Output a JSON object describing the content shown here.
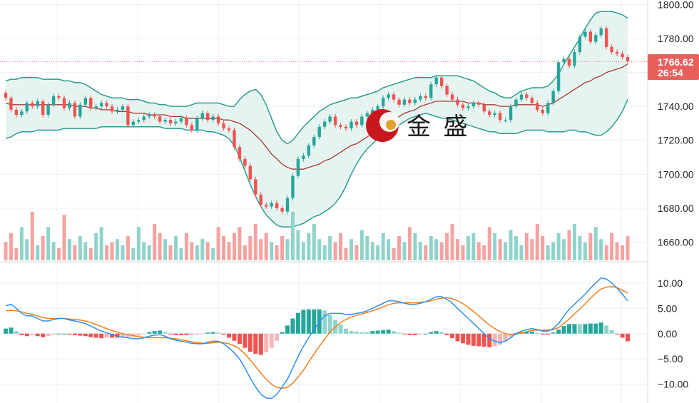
{
  "watermark": {
    "text": "金 盛"
  },
  "price_badge": {
    "price": "1766.62",
    "countdown": "26:54",
    "color": "#e8605c"
  },
  "colors": {
    "up": "#26a69a",
    "down": "#ef5350",
    "bb_band": "#2a9d8f",
    "bb_fill": "#e6f4f1",
    "bb_mid": "#a83a32",
    "macd_line": "#2f8fe8",
    "signal_line": "#f07f1c",
    "vol_up": "#8fd3cb",
    "vol_down": "#f4a3a0",
    "grid": "#eceff3"
  },
  "chart_data": [
    {
      "type": "candlestick",
      "name": "price",
      "y_ticks": [
        "1800.00",
        "1780.00",
        "1760.00",
        "1740.00",
        "1720.00",
        "1700.00",
        "1680.00",
        "1660.00"
      ],
      "ylim": [
        1656,
        1801
      ],
      "current_price": 1766.62,
      "close": [
        1745,
        1738,
        1735,
        1737,
        1742,
        1740,
        1743,
        1735,
        1741,
        1746,
        1745,
        1739,
        1742,
        1734,
        1741,
        1745,
        1739,
        1740,
        1742,
        1740,
        1737,
        1738,
        1740,
        1729,
        1731,
        1732,
        1734,
        1735,
        1734,
        1731,
        1732,
        1730,
        1731,
        1733,
        1729,
        1726,
        1733,
        1736,
        1732,
        1734,
        1730,
        1727,
        1726,
        1716,
        1709,
        1705,
        1697,
        1688,
        1682,
        1681,
        1683,
        1680,
        1678,
        1686,
        1699,
        1709,
        1711,
        1717,
        1722,
        1728,
        1731,
        1734,
        1729,
        1728,
        1727,
        1731,
        1729,
        1734,
        1736,
        1738,
        1740,
        1745,
        1747,
        1744,
        1741,
        1744,
        1742,
        1744,
        1746,
        1745,
        1753,
        1757,
        1752,
        1747,
        1744,
        1741,
        1739,
        1740,
        1742,
        1741,
        1737,
        1735,
        1736,
        1732,
        1732,
        1740,
        1744,
        1747,
        1745,
        1742,
        1738,
        1736,
        1742,
        1749,
        1766,
        1768,
        1764,
        1772,
        1781,
        1784,
        1778,
        1782,
        1786,
        1775,
        1772,
        1771,
        1769,
        1766.62
      ],
      "open": [
        1748,
        1745,
        1738,
        1735,
        1737,
        1742,
        1740,
        1743,
        1735,
        1741,
        1746,
        1745,
        1739,
        1742,
        1734,
        1741,
        1745,
        1739,
        1740,
        1742,
        1740,
        1737,
        1738,
        1740,
        1729,
        1731,
        1732,
        1734,
        1735,
        1734,
        1731,
        1732,
        1730,
        1731,
        1733,
        1729,
        1726,
        1733,
        1736,
        1732,
        1734,
        1730,
        1727,
        1726,
        1716,
        1709,
        1705,
        1697,
        1688,
        1682,
        1681,
        1683,
        1680,
        1678,
        1686,
        1699,
        1709,
        1711,
        1717,
        1722,
        1728,
        1731,
        1734,
        1729,
        1728,
        1727,
        1731,
        1729,
        1734,
        1736,
        1738,
        1740,
        1745,
        1747,
        1744,
        1741,
        1744,
        1742,
        1744,
        1746,
        1745,
        1753,
        1757,
        1752,
        1747,
        1744,
        1741,
        1739,
        1740,
        1742,
        1741,
        1737,
        1735,
        1736,
        1732,
        1732,
        1740,
        1744,
        1747,
        1745,
        1742,
        1738,
        1736,
        1742,
        1749,
        1766,
        1768,
        1764,
        1772,
        1781,
        1784,
        1778,
        1782,
        1786,
        1775,
        1772,
        1771,
        1769
      ],
      "bb_upper": [
        1755,
        1756,
        1756,
        1757,
        1757,
        1757,
        1757,
        1756,
        1756,
        1756,
        1756,
        1755,
        1755,
        1754,
        1754,
        1753,
        1751,
        1749,
        1747,
        1746,
        1745,
        1745,
        1745,
        1744,
        1744,
        1744,
        1743,
        1742,
        1742,
        1741,
        1741,
        1740,
        1740,
        1740,
        1740,
        1741,
        1742,
        1742,
        1742,
        1742,
        1742,
        1741,
        1740,
        1740,
        1744,
        1747,
        1749,
        1750,
        1747,
        1741,
        1733,
        1725,
        1720,
        1718,
        1720,
        1724,
        1728,
        1731,
        1734,
        1737,
        1739,
        1741,
        1742,
        1743,
        1744,
        1745,
        1745,
        1746,
        1747,
        1748,
        1749,
        1751,
        1752,
        1753,
        1754,
        1755,
        1756,
        1757,
        1757,
        1757,
        1757,
        1758,
        1758,
        1758,
        1758,
        1758,
        1757,
        1756,
        1755,
        1753,
        1751,
        1749,
        1748,
        1746,
        1745,
        1745,
        1747,
        1749,
        1750,
        1751,
        1751,
        1751,
        1752,
        1755,
        1759,
        1765,
        1770,
        1775,
        1780,
        1786,
        1791,
        1795,
        1796,
        1796,
        1796,
        1795,
        1794,
        1792
      ],
      "bb_mid": [
        1742,
        1741,
        1741,
        1741,
        1741,
        1741,
        1741,
        1741,
        1741,
        1741,
        1741,
        1741,
        1741,
        1740,
        1740,
        1740,
        1739,
        1739,
        1738,
        1738,
        1738,
        1737,
        1737,
        1737,
        1736,
        1736,
        1736,
        1735,
        1735,
        1735,
        1735,
        1734,
        1734,
        1734,
        1733,
        1733,
        1733,
        1733,
        1733,
        1733,
        1733,
        1732,
        1732,
        1731,
        1730,
        1728,
        1726,
        1723,
        1720,
        1716,
        1712,
        1709,
        1706,
        1704,
        1703,
        1703,
        1703,
        1704,
        1705,
        1706,
        1708,
        1709,
        1711,
        1713,
        1715,
        1717,
        1718,
        1720,
        1722,
        1724,
        1726,
        1728,
        1730,
        1732,
        1734,
        1736,
        1737,
        1738,
        1740,
        1741,
        1742,
        1743,
        1743,
        1743,
        1743,
        1743,
        1743,
        1742,
        1742,
        1742,
        1741,
        1741,
        1741,
        1740,
        1740,
        1740,
        1741,
        1741,
        1741,
        1741,
        1741,
        1740,
        1741,
        1742,
        1744,
        1746,
        1748,
        1750,
        1752,
        1754,
        1755,
        1757,
        1758,
        1760,
        1761,
        1762,
        1763,
        1765
      ],
      "bb_lower": [
        1721,
        1722,
        1724,
        1725,
        1725,
        1725,
        1726,
        1726,
        1726,
        1726,
        1726,
        1727,
        1727,
        1727,
        1727,
        1727,
        1727,
        1727,
        1728,
        1728,
        1728,
        1728,
        1728,
        1728,
        1728,
        1728,
        1728,
        1728,
        1728,
        1728,
        1727,
        1727,
        1727,
        1727,
        1726,
        1726,
        1726,
        1726,
        1725,
        1725,
        1724,
        1723,
        1721,
        1717,
        1710,
        1702,
        1694,
        1687,
        1681,
        1676,
        1673,
        1670,
        1669,
        1669,
        1669,
        1670,
        1671,
        1673,
        1675,
        1676,
        1678,
        1680,
        1683,
        1687,
        1693,
        1700,
        1706,
        1711,
        1715,
        1718,
        1721,
        1723,
        1725,
        1727,
        1729,
        1731,
        1733,
        1734,
        1735,
        1736,
        1735,
        1734,
        1733,
        1733,
        1732,
        1731,
        1730,
        1729,
        1728,
        1727,
        1726,
        1725,
        1725,
        1724,
        1724,
        1724,
        1724,
        1725,
        1726,
        1726,
        1726,
        1726,
        1725,
        1725,
        1725,
        1725,
        1726,
        1726,
        1725,
        1725,
        1724,
        1723,
        1723,
        1725,
        1728,
        1732,
        1737,
        1744
      ],
      "volume": [
        30,
        45,
        20,
        55,
        35,
        80,
        25,
        40,
        55,
        30,
        20,
        75,
        35,
        25,
        40,
        30,
        20,
        45,
        55,
        25,
        30,
        35,
        25,
        40,
        20,
        55,
        30,
        25,
        60,
        45,
        35,
        25,
        40,
        20,
        45,
        30,
        25,
        35,
        30,
        20,
        55,
        40,
        30,
        45,
        55,
        25,
        40,
        60,
        35,
        45,
        30,
        25,
        40,
        35,
        80,
        50,
        30,
        45,
        60,
        35,
        25,
        40,
        30,
        45,
        20,
        35,
        25,
        50,
        40,
        30,
        25,
        45,
        35,
        20,
        40,
        30,
        55,
        45,
        30,
        25,
        40,
        35,
        30,
        45,
        60,
        35,
        25,
        40,
        45,
        30,
        25,
        55,
        45,
        35,
        30,
        50,
        40,
        25,
        45,
        35,
        60,
        40,
        25,
        30,
        45,
        35,
        50,
        60,
        40,
        30,
        45,
        55,
        35,
        25,
        45,
        30,
        25,
        40
      ]
    },
    {
      "type": "macd",
      "name": "MACD",
      "y_ticks": [
        "10.00",
        "5.00",
        "0.00",
        "−5.00",
        "−10.00"
      ],
      "ylim": [
        -13,
        13.5
      ],
      "macd": [
        5.5,
        5.8,
        5.0,
        4.0,
        3.5,
        3.5,
        3.0,
        2.5,
        2.5,
        2.8,
        3.0,
        3.0,
        2.7,
        2.5,
        2.3,
        2.0,
        1.5,
        1.0,
        0.5,
        0.2,
        -0.2,
        -0.5,
        -0.7,
        -0.8,
        -1.0,
        -1.0,
        -0.8,
        -0.5,
        -0.3,
        -0.2,
        -0.5,
        -1.0,
        -1.3,
        -1.5,
        -1.7,
        -1.9,
        -2.0,
        -2.0,
        -1.7,
        -1.5,
        -1.5,
        -2.0,
        -2.8,
        -3.8,
        -5.0,
        -6.8,
        -8.8,
        -10.5,
        -12.0,
        -12.7,
        -12.8,
        -12.0,
        -10.5,
        -9.0,
        -6.8,
        -4.5,
        -2.5,
        -0.8,
        0.8,
        2.3,
        3.5,
        4.0,
        4.0,
        4.0,
        3.8,
        3.8,
        4.0,
        4.2,
        4.5,
        5.0,
        5.5,
        6.0,
        6.5,
        6.5,
        6.3,
        6.0,
        5.8,
        5.8,
        6.0,
        6.3,
        6.8,
        7.3,
        7.3,
        6.8,
        6.0,
        5.0,
        4.0,
        3.0,
        2.0,
        1.0,
        0.0,
        -1.0,
        -1.5,
        -1.8,
        -1.5,
        -0.8,
        0.0,
        0.5,
        0.8,
        1.0,
        0.8,
        0.5,
        0.5,
        1.0,
        2.0,
        3.5,
        4.8,
        5.8,
        6.8,
        7.8,
        9.0,
        10.0,
        11.0,
        10.8,
        10.0,
        9.0,
        7.8,
        6.5
      ],
      "signal": [
        4.5,
        4.6,
        4.5,
        4.3,
        4.0,
        3.8,
        3.5,
        3.2,
        3.0,
        3.0,
        3.0,
        3.0,
        2.9,
        2.8,
        2.7,
        2.5,
        2.2,
        1.8,
        1.4,
        1.0,
        0.6,
        0.3,
        0.0,
        -0.2,
        -0.4,
        -0.6,
        -0.7,
        -0.8,
        -0.8,
        -0.8,
        -0.8,
        -0.9,
        -1.0,
        -1.2,
        -1.4,
        -1.6,
        -1.8,
        -1.9,
        -1.9,
        -1.8,
        -1.7,
        -1.8,
        -2.0,
        -2.4,
        -3.0,
        -4.0,
        -5.2,
        -6.5,
        -7.8,
        -9.0,
        -10.0,
        -10.6,
        -10.8,
        -10.6,
        -9.8,
        -8.6,
        -7.2,
        -5.6,
        -4.0,
        -2.5,
        -1.1,
        0.3,
        1.3,
        2.2,
        2.8,
        3.3,
        3.6,
        3.9,
        4.2,
        4.5,
        4.9,
        5.3,
        5.7,
        6.0,
        6.1,
        6.1,
        6.1,
        6.1,
        6.2,
        6.3,
        6.5,
        6.8,
        7.0,
        7.1,
        6.9,
        6.5,
        5.9,
        5.2,
        4.4,
        3.5,
        2.6,
        1.7,
        1.0,
        0.4,
        0.0,
        -0.2,
        -0.1,
        0.2,
        0.4,
        0.6,
        0.7,
        0.7,
        0.7,
        0.8,
        1.2,
        2.0,
        2.9,
        3.9,
        4.9,
        5.9,
        7.0,
        8.0,
        8.8,
        9.2,
        9.3,
        9.1,
        8.6,
        8.0
      ],
      "histogram_colors": [
        "#26a69a",
        "#8fd3cb",
        "#ef5350",
        "#f4b6b8"
      ]
    }
  ]
}
